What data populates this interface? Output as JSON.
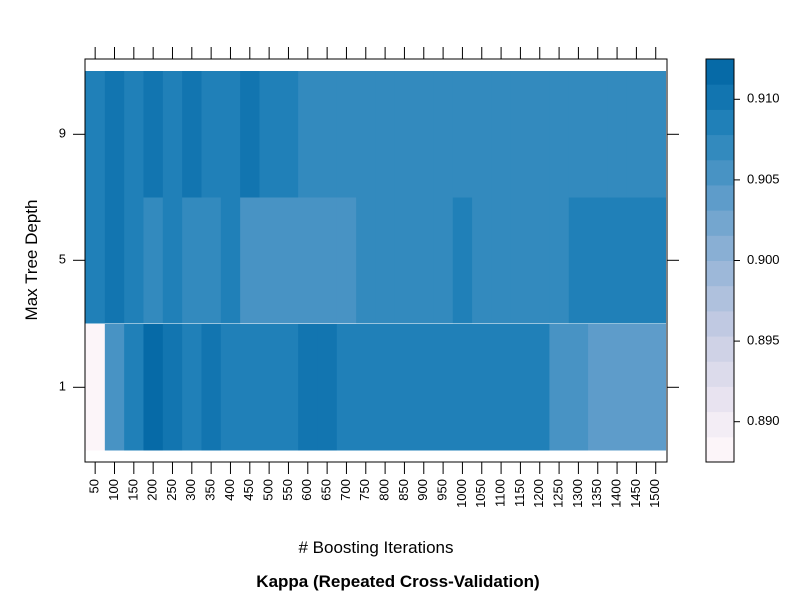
{
  "chart_data": {
    "type": "heatmap",
    "title": "Kappa (Repeated Cross-Validation)",
    "xlabel": "# Boosting Iterations",
    "ylabel": "Max Tree Depth",
    "x": [
      50,
      100,
      150,
      200,
      250,
      300,
      350,
      400,
      450,
      500,
      550,
      600,
      650,
      700,
      750,
      800,
      850,
      900,
      950,
      1000,
      1050,
      1100,
      1150,
      1200,
      1250,
      1300,
      1350,
      1400,
      1450,
      1500
    ],
    "x_tick_labels": [
      "50",
      "100",
      "150",
      "200",
      "250",
      "300",
      "350",
      "400",
      "450",
      "500",
      "550",
      "600",
      "650",
      "700",
      "750",
      "800",
      "850",
      "900",
      "950",
      "1000",
      "1050",
      "1100",
      "1150",
      "1200",
      "1250",
      "1300",
      "1350",
      "1400",
      "1450",
      "1500"
    ],
    "y": [
      1,
      5,
      9
    ],
    "y_tick_labels": [
      "1",
      "5",
      "9"
    ],
    "z": [
      [
        0.8885,
        0.9052,
        0.9083,
        0.9122,
        0.9108,
        0.9092,
        0.9107,
        0.9083,
        0.9083,
        0.9083,
        0.9083,
        0.9108,
        0.9108,
        0.9093,
        0.9083,
        0.9093,
        0.9093,
        0.9093,
        0.9093,
        0.9093,
        0.9083,
        0.9083,
        0.9083,
        0.9083,
        0.9052,
        0.9052,
        0.9045,
        0.9045,
        0.9045,
        0.9045
      ],
      [
        0.9083,
        0.9108,
        0.9093,
        0.9066,
        0.9083,
        0.9066,
        0.9066,
        0.9083,
        0.9058,
        0.9058,
        0.9058,
        0.9058,
        0.9058,
        0.9058,
        0.9072,
        0.9072,
        0.9072,
        0.9072,
        0.9072,
        0.9093,
        0.9072,
        0.9072,
        0.9072,
        0.9072,
        0.9072,
        0.9093,
        0.9093,
        0.9083,
        0.9093,
        0.9093
      ],
      [
        0.9083,
        0.9108,
        0.9093,
        0.9108,
        0.9093,
        0.9108,
        0.9093,
        0.9093,
        0.9108,
        0.9093,
        0.9093,
        0.9072,
        0.9072,
        0.9072,
        0.9072,
        0.9072,
        0.9072,
        0.9072,
        0.9072,
        0.9072,
        0.9072,
        0.9072,
        0.9072,
        0.9072,
        0.9072,
        0.9072,
        0.9072,
        0.9072,
        0.9072,
        0.9072
      ]
    ],
    "colorbar": {
      "min": 0.8875,
      "max": 0.9125,
      "ticks": [
        0.89,
        0.895,
        0.9,
        0.905,
        0.91
      ],
      "tick_labels": [
        "0.890",
        "0.895",
        "0.900",
        "0.905",
        "0.910"
      ],
      "colors": [
        "#fcf5f9",
        "#f3edf5",
        "#e8e3f0",
        "#dcdbeb",
        "#cfd2e6",
        "#c0c9e2",
        "#afc1dd",
        "#9db8d9",
        "#89afd4",
        "#74a6cf",
        "#5e9cca",
        "#4893c4",
        "#338abe",
        "#2080b8",
        "#1275b0",
        "#066aa7"
      ]
    },
    "grid": false
  }
}
